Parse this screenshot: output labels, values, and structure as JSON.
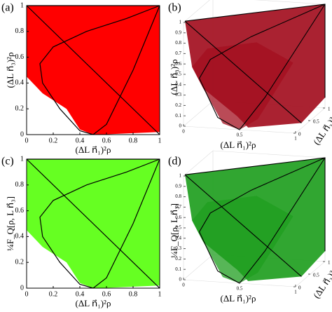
{
  "chart_data": [
    {
      "type": "region",
      "panel": "(a)",
      "xlabel": "(ΔL n⃗₁)²ρ",
      "ylabel": "(ΔL n⃗₃)²ρ",
      "xlim": [
        0,
        1
      ],
      "ylim": [
        0,
        1
      ],
      "xticks": [
        0,
        0.2,
        0.4,
        0.6,
        0.8,
        1
      ],
      "yticks": [
        0,
        0.2,
        0.4,
        0.6,
        0.8,
        1
      ],
      "color": "#ff0000"
    },
    {
      "type": "region3d",
      "panel": "(b)",
      "xlabel": "(ΔL n⃗₁)²ρ",
      "ylabel": "(ΔL n⃗₂)²ρ",
      "zlabel": "(ΔL n⃗₃)²ρ",
      "xlim": [
        0,
        1
      ],
      "ylim": [
        0,
        1
      ],
      "zlim": [
        0,
        1
      ],
      "xticks": [
        0,
        0.5,
        1
      ],
      "yticks": [
        0,
        0.5,
        1
      ],
      "zticks": [
        0,
        0.1,
        0.2,
        0.3,
        0.4,
        0.5,
        0.6,
        0.7,
        0.8,
        0.9,
        1
      ],
      "color": "#a30f1f"
    },
    {
      "type": "region",
      "panel": "(c)",
      "xlabel": "(ΔL n⃗₁)²ρ",
      "ylabel": "¼F_Q[ρ, L n⃗₃]",
      "xlim": [
        0,
        1
      ],
      "ylim": [
        0,
        1
      ],
      "xticks": [
        0,
        0.2,
        0.4,
        0.6,
        0.8,
        1
      ],
      "yticks": [
        0,
        0.2,
        0.4,
        0.6,
        0.8,
        1
      ],
      "color": "#66ff22"
    },
    {
      "type": "region3d",
      "panel": "(d)",
      "xlabel": "(ΔL n⃗₁)²ρ",
      "ylabel": "(ΔL n⃗₂)²ρ",
      "zlabel": "¼F_Q[ρ, L n⃗₃]",
      "xlim": [
        0,
        1
      ],
      "ylim": [
        0,
        1
      ],
      "zlim": [
        0,
        1
      ],
      "xticks": [
        0,
        0.5,
        1
      ],
      "yticks": [
        0,
        0.5,
        1
      ],
      "zticks": [
        0,
        0.1,
        0.2,
        0.3,
        0.4,
        0.5,
        0.6,
        0.7,
        0.8,
        0.9,
        1
      ],
      "color": "#1f9e1f"
    }
  ]
}
